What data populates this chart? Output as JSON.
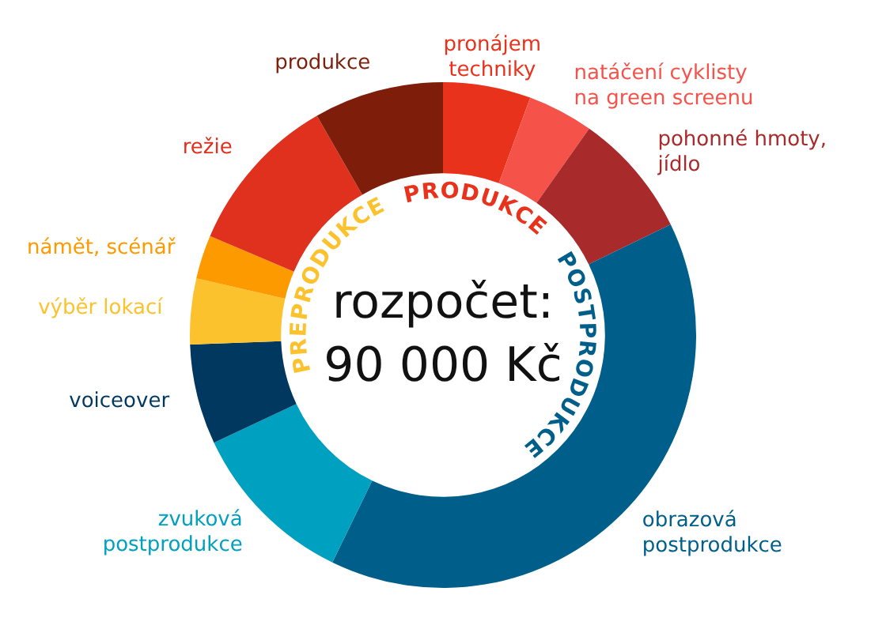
{
  "chart_data": {
    "type": "donut",
    "title": "rozpočet: 90 000 Kč",
    "categories": [
      "pronájem techniky",
      "natáčení cyklisty na green screenu",
      "pohonné hmoty, jídlo",
      "obrazová postprodukce",
      "zvuková postprodukce",
      "voiceover",
      "výběr lokací",
      "námět, scénář",
      "režie",
      "produkce"
    ],
    "values": [
      5.6,
      4.2,
      8.0,
      39.4,
      10.8,
      6.4,
      4.2,
      2.8,
      10.3,
      8.3
    ],
    "colors": [
      "#e8321c",
      "#f5524a",
      "#a82a2a",
      "#005f8a",
      "#00a0c0",
      "#00385f",
      "#fcc22e",
      "#fc9a00",
      "#e0301e",
      "#7e1e0a"
    ],
    "annotations": [
      "PREPRODUKCE",
      "PRODUKCE",
      "POSTPRODUKCE"
    ],
    "legend": false
  }
}
